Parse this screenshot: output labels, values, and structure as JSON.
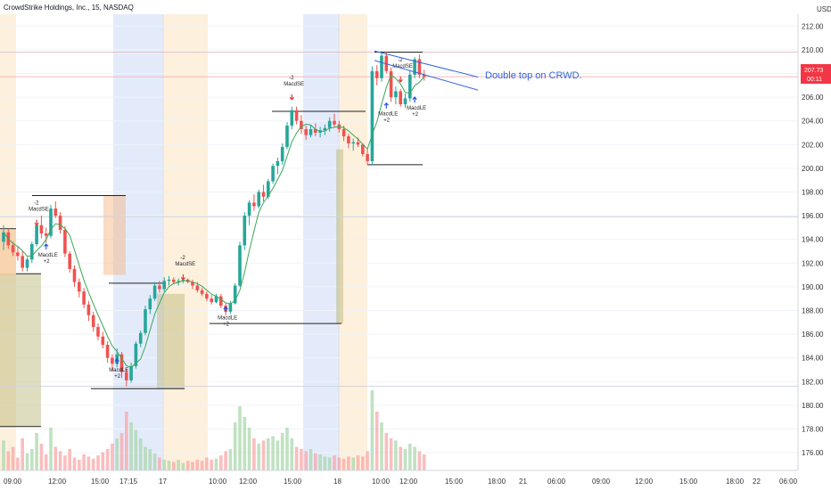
{
  "chart_data": {
    "type": "candlestick",
    "title": "CrowdStrike Holdings, Inc., 15, NASDAQ",
    "currency": "USD",
    "ylim": [
      174.5,
      213
    ],
    "y_ticks": [
      "176.00",
      "178.00",
      "180.00",
      "182.00",
      "184.00",
      "186.00",
      "188.00",
      "190.00",
      "192.00",
      "194.00",
      "196.00",
      "198.00",
      "200.00",
      "202.00",
      "204.00",
      "206.00",
      "208.00",
      "210.00",
      "212.00"
    ],
    "x_ticks": [
      "09:00",
      "12:00",
      "15:00",
      "17:15",
      "17",
      "10:00",
      "12:00",
      "15:00",
      "18",
      "10:00",
      "12:00",
      "15:00",
      "18:00",
      "21",
      "06:00",
      "09:00",
      "12:00",
      "15:00",
      "18:00",
      "22",
      "06:00"
    ],
    "last_price": {
      "value": "207.73",
      "countdown": "00:11"
    },
    "annotation": "Double top on CRWD.",
    "session_labels": [
      "17",
      "18"
    ],
    "signals": [
      {
        "type": "MacdSE",
        "qty": "-2",
        "price": 195.2
      },
      {
        "type": "MacdLE",
        "qty": "+2",
        "price": 193.6
      },
      {
        "type": "MacdLE",
        "qty": "+2",
        "price": 183.9
      },
      {
        "type": "MacdSE",
        "qty": "-2",
        "price": 190.6
      },
      {
        "type": "MacdLE",
        "qty": "+2",
        "price": 188.3
      },
      {
        "type": "MacdSE",
        "qty": "-2",
        "price": 205.8
      },
      {
        "type": "MacdLE",
        "qty": "+2",
        "price": 205.5
      },
      {
        "type": "MacdSE",
        "qty": "-2",
        "price": 207.3
      },
      {
        "type": "MacdLE",
        "qty": "+2",
        "price": 206.0
      }
    ],
    "candles": [
      [
        193.8,
        195.2,
        193.1,
        194.6
      ],
      [
        194.6,
        194.9,
        193.2,
        193.5
      ],
      [
        193.5,
        193.8,
        192.6,
        192.9
      ],
      [
        192.9,
        193.4,
        192.2,
        192.6
      ],
      [
        192.6,
        193.0,
        191.3,
        191.6
      ],
      [
        191.6,
        192.5,
        191.3,
        192.3
      ],
      [
        192.3,
        193.8,
        192.0,
        193.6
      ],
      [
        193.6,
        195.6,
        193.4,
        195.2
      ],
      [
        195.2,
        196.0,
        194.1,
        194.5
      ],
      [
        194.5,
        195.0,
        193.7,
        194.3
      ],
      [
        194.3,
        196.9,
        194.1,
        196.6
      ],
      [
        196.6,
        197.2,
        195.8,
        196.0
      ],
      [
        196.0,
        196.3,
        194.5,
        194.8
      ],
      [
        194.8,
        195.1,
        192.5,
        192.8
      ],
      [
        192.8,
        193.0,
        191.2,
        191.5
      ],
      [
        191.5,
        191.8,
        190.0,
        190.4
      ],
      [
        190.4,
        190.7,
        189.1,
        189.6
      ],
      [
        189.6,
        189.9,
        188.2,
        188.5
      ],
      [
        188.5,
        188.8,
        187.1,
        187.6
      ],
      [
        187.6,
        187.9,
        186.2,
        186.6
      ],
      [
        186.6,
        186.9,
        185.5,
        185.8
      ],
      [
        185.8,
        186.2,
        184.8,
        185.1
      ],
      [
        185.1,
        185.4,
        183.6,
        184.0
      ],
      [
        184.0,
        184.3,
        182.9,
        183.5
      ],
      [
        183.5,
        184.8,
        183.2,
        184.3
      ],
      [
        184.3,
        184.5,
        182.3,
        182.8
      ],
      [
        182.8,
        183.1,
        181.6,
        182.1
      ],
      [
        182.1,
        183.6,
        181.9,
        183.3
      ],
      [
        183.3,
        185.4,
        183.1,
        185.2
      ],
      [
        185.2,
        186.3,
        184.9,
        186.1
      ],
      [
        186.1,
        188.4,
        185.9,
        188.1
      ],
      [
        188.1,
        189.3,
        187.7,
        189.0
      ],
      [
        189.0,
        190.4,
        188.8,
        190.1
      ],
      [
        190.1,
        190.5,
        189.5,
        189.8
      ],
      [
        189.8,
        190.8,
        189.6,
        190.5
      ],
      [
        190.5,
        190.9,
        190.1,
        190.6
      ],
      [
        190.6,
        190.8,
        190.2,
        190.4
      ],
      [
        190.4,
        190.7,
        190.1,
        190.5
      ],
      [
        190.5,
        190.8,
        190.3,
        190.6
      ],
      [
        190.6,
        190.7,
        190.3,
        190.4
      ],
      [
        190.4,
        190.6,
        189.8,
        190.1
      ],
      [
        190.1,
        190.4,
        189.5,
        189.7
      ],
      [
        189.7,
        189.9,
        189.2,
        189.4
      ],
      [
        189.4,
        189.6,
        188.8,
        189.0
      ],
      [
        189.0,
        189.3,
        188.5,
        188.7
      ],
      [
        188.7,
        189.4,
        188.6,
        189.2
      ],
      [
        189.2,
        189.4,
        188.2,
        188.4
      ],
      [
        188.4,
        188.6,
        187.6,
        187.9
      ],
      [
        187.9,
        188.8,
        187.7,
        188.6
      ],
      [
        188.6,
        190.3,
        188.5,
        190.1
      ],
      [
        190.1,
        193.8,
        190.0,
        193.5
      ],
      [
        193.5,
        196.3,
        193.1,
        196.0
      ],
      [
        196.0,
        197.3,
        195.2,
        197.1
      ],
      [
        197.1,
        197.8,
        196.4,
        196.8
      ],
      [
        196.8,
        198.2,
        196.6,
        198.0
      ],
      [
        198.0,
        198.6,
        197.2,
        197.6
      ],
      [
        197.6,
        199.1,
        197.4,
        198.9
      ],
      [
        198.9,
        200.4,
        198.7,
        200.2
      ],
      [
        200.2,
        200.9,
        199.5,
        200.6
      ],
      [
        200.6,
        202.1,
        200.3,
        201.8
      ],
      [
        201.8,
        203.9,
        201.6,
        203.6
      ],
      [
        203.6,
        205.2,
        203.3,
        204.9
      ],
      [
        204.9,
        205.2,
        203.7,
        204.0
      ],
      [
        204.0,
        204.5,
        202.9,
        203.3
      ],
      [
        203.3,
        203.6,
        202.4,
        202.8
      ],
      [
        202.8,
        203.6,
        202.6,
        203.3
      ],
      [
        203.3,
        203.8,
        202.7,
        203.0
      ],
      [
        203.0,
        203.5,
        202.6,
        203.2
      ],
      [
        203.2,
        203.7,
        202.8,
        203.4
      ],
      [
        203.4,
        204.3,
        203.1,
        204.0
      ],
      [
        204.0,
        204.6,
        203.5,
        203.7
      ],
      [
        203.7,
        204.0,
        203.0,
        203.3
      ],
      [
        203.3,
        203.6,
        202.3,
        202.7
      ],
      [
        202.7,
        202.9,
        201.7,
        202.1
      ],
      [
        202.1,
        202.5,
        201.5,
        202.2
      ],
      [
        202.2,
        202.6,
        201.8,
        202.0
      ],
      [
        202.0,
        202.1,
        201.0,
        201.2
      ],
      [
        201.2,
        201.6,
        200.3,
        200.6
      ],
      [
        200.6,
        208.6,
        200.3,
        208.2
      ],
      [
        208.2,
        208.7,
        207.0,
        207.6
      ],
      [
        207.6,
        209.9,
        207.3,
        209.5
      ],
      [
        209.5,
        209.8,
        208.0,
        208.2
      ],
      [
        208.2,
        208.5,
        205.6,
        206.0
      ],
      [
        206.0,
        206.9,
        205.4,
        206.5
      ],
      [
        206.5,
        206.7,
        205.2,
        205.4
      ],
      [
        205.4,
        206.3,
        205.1,
        205.9
      ],
      [
        205.9,
        208.3,
        205.6,
        207.9
      ],
      [
        207.9,
        209.4,
        207.6,
        209.2
      ],
      [
        209.2,
        209.6,
        207.6,
        207.9
      ],
      [
        207.9,
        208.3,
        207.4,
        207.73
      ]
    ],
    "volume": [
      0.28,
      0.18,
      0.22,
      0.12,
      0.3,
      0.16,
      0.2,
      0.35,
      0.25,
      0.15,
      0.4,
      0.22,
      0.18,
      0.14,
      0.2,
      0.12,
      0.1,
      0.15,
      0.13,
      0.11,
      0.14,
      0.17,
      0.2,
      0.25,
      0.3,
      0.35,
      0.55,
      0.45,
      0.38,
      0.3,
      0.22,
      0.2,
      0.16,
      0.12,
      0.1,
      0.09,
      0.08,
      0.1,
      0.07,
      0.09,
      0.08,
      0.1,
      0.09,
      0.12,
      0.1,
      0.11,
      0.14,
      0.18,
      0.2,
      0.45,
      0.6,
      0.5,
      0.4,
      0.3,
      0.25,
      0.28,
      0.3,
      0.32,
      0.28,
      0.35,
      0.4,
      0.3,
      0.22,
      0.2,
      0.18,
      0.2,
      0.16,
      0.15,
      0.13,
      0.12,
      0.14,
      0.12,
      0.11,
      0.13,
      0.12,
      0.14,
      0.13,
      0.18,
      0.75,
      0.55,
      0.45,
      0.35,
      0.3,
      0.28,
      0.22,
      0.2,
      0.25,
      0.22,
      0.18,
      0.15
    ]
  }
}
